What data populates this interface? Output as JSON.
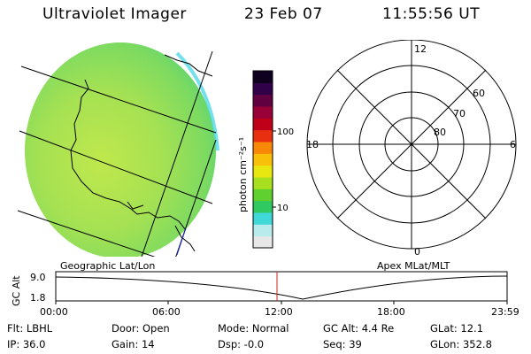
{
  "header": {
    "title": "Ultraviolet Imager",
    "date": "23 Feb 07",
    "time": "11:55:56 UT"
  },
  "colorbar": {
    "unit_label": "photon cm⁻²s⁻¹",
    "tick_high": "100",
    "tick_low": "10",
    "colors": [
      "#e8e8e8",
      "#b8ecec",
      "#40d8d8",
      "#30c860",
      "#60d030",
      "#a8e020",
      "#e8e810",
      "#f8c008",
      "#f88808",
      "#e83010",
      "#c00018",
      "#980038",
      "#600040",
      "#300048",
      "#100020"
    ]
  },
  "polar": {
    "mlt_labels": {
      "top": "12",
      "left": "18",
      "right": "6",
      "bottom": "0"
    },
    "lat_labels": [
      "60",
      "70",
      "80"
    ]
  },
  "panel_labels": {
    "left": "Geographic Lat/Lon",
    "right": "Apex MLat/MLT"
  },
  "altitude_plot": {
    "ylabel": "GC Alt",
    "ytick_high": "9.0",
    "ytick_low": "1.8",
    "xticks": [
      "00:00",
      "06:00",
      "12:00",
      "18:00",
      "23:59"
    ],
    "marker_color": "#d02020"
  },
  "info": {
    "flt": "Flt: LBHL",
    "ip": "IP: 36.0",
    "door": "Door: Open",
    "gain": "Gain: 14",
    "mode": "Mode: Normal",
    "dsp": "Dsp:   -0.0",
    "gcalt": "GC Alt: 4.4 Re",
    "seq": "Seq: 39",
    "glat": "GLat:  12.1",
    "glon": "GLon: 352.8"
  }
}
